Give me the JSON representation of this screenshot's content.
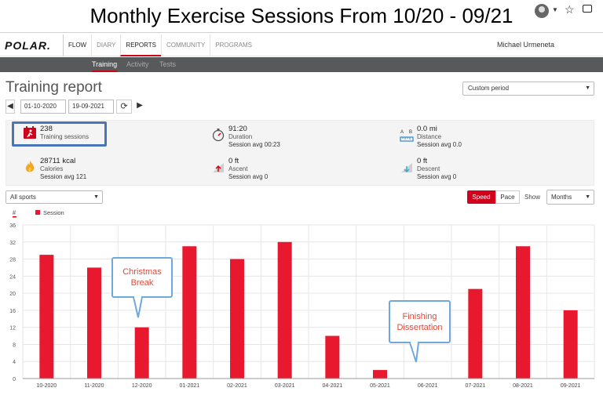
{
  "banner": {
    "title": "Monthly Exercise Sessions From 10/20 - 09/21"
  },
  "topnav": {
    "logo": "POLAR.",
    "links": [
      "FLOW",
      "DIARY",
      "REPORTS",
      "COMMUNITY",
      "PROGRAMS"
    ],
    "user_name": "Michael Urmeneta"
  },
  "subnav": {
    "tabs": [
      "Training",
      "Activity",
      "Tests"
    ]
  },
  "report": {
    "title": "Training report",
    "period": "Custom period",
    "date_from": "01-10-2020",
    "date_to": "19-09-2021"
  },
  "summary": {
    "sessions": {
      "value": "238",
      "label": "Training sessions"
    },
    "duration": {
      "value": "91:20",
      "label": "Duration",
      "avg": "Session avg 00:23"
    },
    "distance": {
      "value": "0.0 mi",
      "label": "Distance",
      "avg": "Session avg 0.0"
    },
    "calories": {
      "value": "28711 kcal",
      "label": "Calories",
      "avg": "Session avg 121"
    },
    "ascent": {
      "value": "0 ft",
      "label": "Ascent",
      "avg": "Session avg 0"
    },
    "descent": {
      "value": "0 ft",
      "label": "Descent",
      "avg": "Session avg 0"
    }
  },
  "filters": {
    "sports": "All sports",
    "speed": "Speed",
    "pace": "Pace",
    "show": "Show",
    "interval": "Months"
  },
  "annotations": {
    "christmas": "Christmas\nBreak",
    "dissertation": "Finishing\nDissertation"
  },
  "colors": {
    "accent": "#d0021b",
    "bar": "#e8182e",
    "callout_border": "#6fa8dc",
    "callout_text": "#e04a3a"
  },
  "chart_data": {
    "type": "bar",
    "ylabel": "#",
    "legend": [
      "Session"
    ],
    "categories": [
      "10-2020",
      "11-2020",
      "12-2020",
      "01-2021",
      "02-2021",
      "03-2021",
      "04-2021",
      "05-2021",
      "06-2021",
      "07-2021",
      "08-2021",
      "09-2021"
    ],
    "series": [
      {
        "name": "Session",
        "values": [
          29,
          26,
          12,
          31,
          28,
          32,
          10,
          2,
          0,
          21,
          31,
          16
        ]
      }
    ],
    "ylim": [
      0,
      36
    ],
    "yticks": [
      0,
      4,
      8,
      12,
      16,
      20,
      24,
      28,
      32,
      36
    ],
    "grid": true
  }
}
